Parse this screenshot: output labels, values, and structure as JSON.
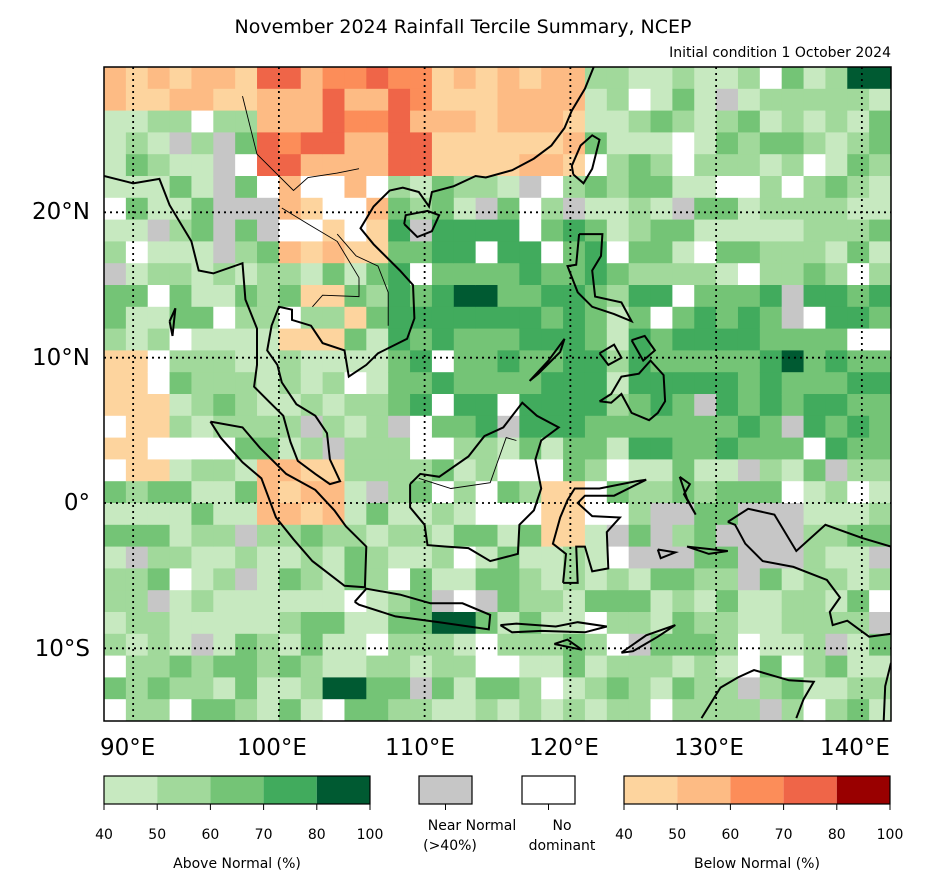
{
  "title": "November 2024 Rainfall Tercile Summary, NCEP",
  "subtitle": "Initial condition 1 October 2024",
  "lat_ticks": [
    "20°N",
    "10°N",
    "0°",
    "10°S"
  ],
  "lon_ticks": [
    "90°E",
    "100°E",
    "110°E",
    "120°E",
    "130°E",
    "140°E"
  ],
  "legend": {
    "above": {
      "label": "Above Normal (%)",
      "ticks": [
        "40",
        "50",
        "60",
        "70",
        "80",
        "100"
      ],
      "colors": [
        "#c7e9c0",
        "#a1d99b",
        "#74c476",
        "#41ab5d",
        "#005a32"
      ]
    },
    "near_normal": {
      "label_line1": "Near Normal",
      "label_line2": "(>40%)",
      "color": "#c6c6c6"
    },
    "no_dominant": {
      "label_line1": "No",
      "label_line2": "dominant",
      "color": "#ffffff"
    },
    "below": {
      "label": "Below Normal (%)",
      "ticks": [
        "40",
        "50",
        "60",
        "70",
        "80",
        "100"
      ],
      "colors": [
        "#fdd49e",
        "#fdbb84",
        "#fc8d59",
        "#ef6548",
        "#990000"
      ]
    }
  },
  "map": {
    "lon_range": [
      88,
      142
    ],
    "lat_range": [
      -15,
      30
    ],
    "grid_lons": [
      90,
      100,
      110,
      120,
      130,
      140
    ],
    "grid_lats": [
      20,
      10,
      0,
      -10
    ],
    "gridline_style": "dotted"
  }
}
